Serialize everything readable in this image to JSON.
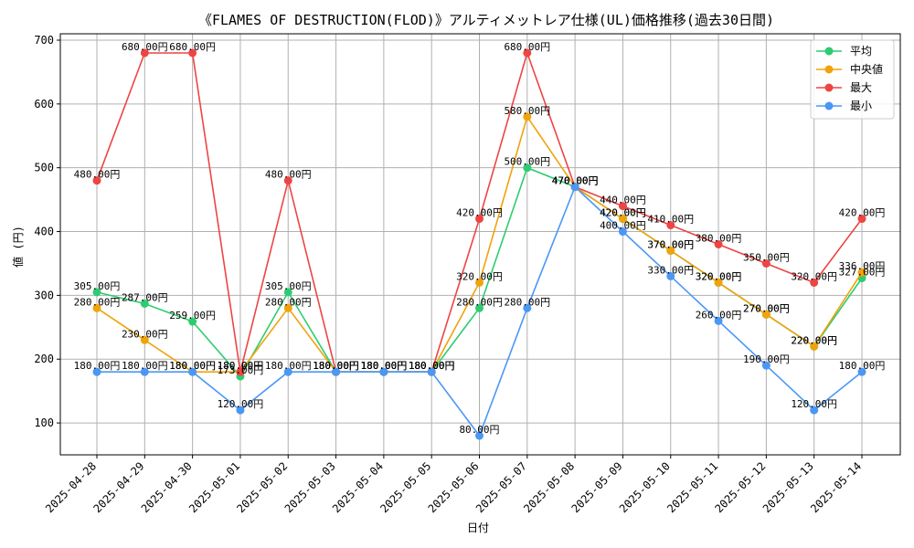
{
  "chart_data": {
    "type": "line",
    "title": "《FLAMES OF DESTRUCTION(FLOD)》アルティメットレア仕様(UL)価格推移(過去30日間)",
    "xlabel": "日付",
    "ylabel": "値 (円)",
    "ylim": [
      50,
      710
    ],
    "yticks": [
      100,
      200,
      300,
      400,
      500,
      600,
      700
    ],
    "grid": true,
    "legend_position": "top-right",
    "label_suffix": "円",
    "categories": [
      "2025-04-28",
      "2025-04-29",
      "2025-04-30",
      "2025-05-01",
      "2025-05-02",
      "2025-05-03",
      "2025-05-04",
      "2025-05-05",
      "2025-05-06",
      "2025-05-07",
      "2025-05-08",
      "2025-05-09",
      "2025-05-10",
      "2025-05-11",
      "2025-05-12",
      "2025-05-13",
      "2025-05-14"
    ],
    "series": [
      {
        "key": "avg",
        "name": "平均",
        "color": "#2ecc71",
        "values": [
          305,
          287,
          259,
          173,
          305,
          180,
          180,
          180,
          280,
          500,
          470,
          420,
          370,
          320,
          270,
          220,
          327
        ],
        "labels": [
          "305.00円",
          "287.00円",
          "259.00円",
          "173.00円",
          "305.00円",
          "180.00円",
          "180.00円",
          "180.00円",
          "280.00円",
          "500.00円",
          "470.00円",
          "420.00円",
          "370.00円",
          "320.00円",
          "270.00円",
          "220.00円",
          "327.00円"
        ]
      },
      {
        "key": "median",
        "name": "中央値",
        "color": "#f0a30a",
        "values": [
          280,
          230,
          180,
          180,
          280,
          180,
          180,
          180,
          320,
          580,
          470,
          420,
          370,
          320,
          270,
          220,
          336
        ],
        "labels": [
          "280.00円",
          "230.00円",
          "180.00円",
          "180.00円",
          "280.00円",
          "180.00円",
          "180.00円",
          "180.00円",
          "320.00円",
          "580.00円",
          "470.00円",
          "420.00円",
          "370.00円",
          "320.00円",
          "270.00円",
          "220.00円",
          "336.00円"
        ]
      },
      {
        "key": "max",
        "name": "最大",
        "color": "#ef4444",
        "values": [
          480,
          680,
          680,
          180,
          480,
          180,
          180,
          180,
          420,
          680,
          470,
          440,
          410,
          380,
          350,
          320,
          420
        ],
        "labels": [
          "480.00円",
          "680.00円",
          "680.00円",
          "180.00円",
          "480.00円",
          "180.00円",
          "180.00円",
          "180.00円",
          "420.00円",
          "680.00円",
          "470.00円",
          "440.00円",
          "410.00円",
          "380.00円",
          "350.00円",
          "320.00円",
          "420.00円"
        ]
      },
      {
        "key": "min",
        "name": "最小",
        "color": "#4a97f5",
        "values": [
          180,
          180,
          180,
          120,
          180,
          180,
          180,
          180,
          80,
          280,
          470,
          400,
          330,
          260,
          190,
          120,
          180
        ],
        "labels": [
          "180.00円",
          "180.00円",
          "180.00円",
          "120.00円",
          "180.00円",
          "180.00円",
          "180.00円",
          "180.00円",
          "80.00円",
          "280.00円",
          "470.00円",
          "400.00円",
          "330.00円",
          "260.00円",
          "190.00円",
          "120.00円",
          "180.00円"
        ]
      }
    ]
  }
}
